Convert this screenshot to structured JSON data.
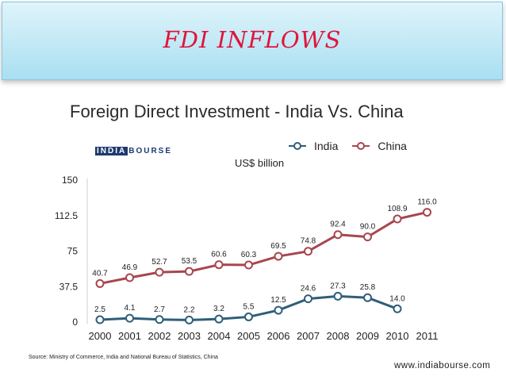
{
  "slide": {
    "title": "FDI INFLOWS",
    "source": "Source: Ministry of Commerce, India and National Bureau of Statistics, China",
    "website": "www.indiabourse.com",
    "logo_part1": "INDIA",
    "logo_part2": "BOURSE"
  },
  "chart_data": {
    "type": "line",
    "title": "Foreign Direct Investment - India Vs. China",
    "ylabel": "US$ billion",
    "xlabel": "",
    "categories": [
      "2000",
      "2001",
      "2002",
      "2003",
      "2004",
      "2005",
      "2006",
      "2007",
      "2008",
      "2009",
      "2010",
      "2011"
    ],
    "ylim": [
      0,
      150
    ],
    "yticks": [
      "0",
      "37.5",
      "75",
      "112.5",
      "150"
    ],
    "legend_position": "top-right",
    "grid": false,
    "series": [
      {
        "name": "India",
        "color": "#2f5e7a",
        "values": [
          2.5,
          4.1,
          2.7,
          2.2,
          3.2,
          5.5,
          12.5,
          24.6,
          27.3,
          25.8,
          14.0,
          null
        ],
        "labels": [
          "2.5",
          "4.1",
          "2.7",
          "2.2",
          "3.2",
          "5.5",
          "12.5",
          "24.6",
          "27.3",
          "25.8",
          "14.0",
          ""
        ]
      },
      {
        "name": "China",
        "color": "#a8464e",
        "values": [
          40.7,
          46.9,
          52.7,
          53.5,
          60.6,
          60.3,
          69.5,
          74.8,
          92.4,
          90.0,
          108.9,
          116.0
        ],
        "labels": [
          "40.7",
          "46.9",
          "52.7",
          "53.5",
          "60.6",
          "60.3",
          "69.5",
          "74.8",
          "92.4",
          "90.0",
          "108.9",
          "116.0"
        ]
      }
    ]
  }
}
